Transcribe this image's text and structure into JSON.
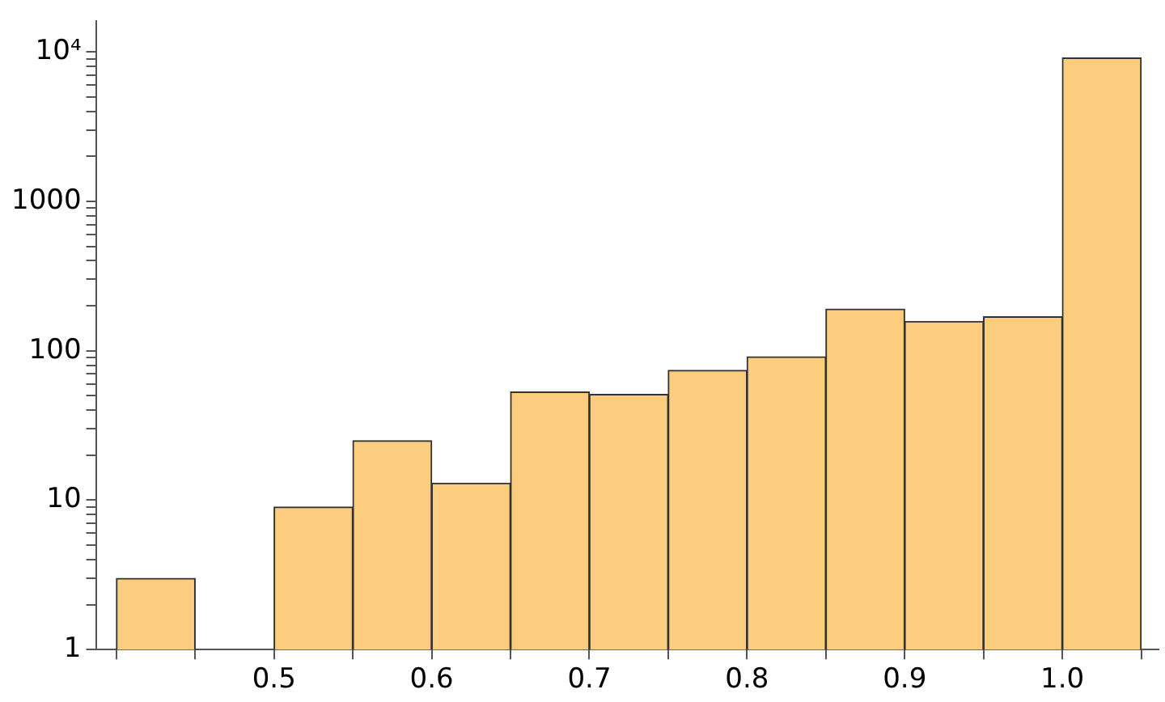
{
  "chart_data": {
    "type": "histogram",
    "bins": [
      0.4,
      0.45,
      0.5,
      0.55,
      0.6,
      0.65,
      0.7,
      0.75,
      0.8,
      0.85,
      0.9,
      0.95,
      1.0,
      1.05
    ],
    "values": [
      3,
      null,
      9,
      25,
      13,
      53,
      51,
      74,
      91,
      190,
      157,
      169,
      9100
    ],
    "color": "#fccd7f",
    "log": "y",
    "grid": false,
    "legend": false,
    "xlim": [
      0.387,
      1.061
    ],
    "xticks": [
      {
        "value": 0.4,
        "label": null
      },
      {
        "value": 0.45,
        "label": null
      },
      0.5,
      {
        "value": 0.55,
        "label": null
      },
      0.6,
      {
        "value": 0.65,
        "label": null
      },
      0.7,
      {
        "value": 0.75,
        "label": null
      },
      0.8,
      {
        "value": 0.85,
        "label": null
      },
      0.9,
      {
        "value": 0.95,
        "label": null
      },
      {
        "value": 1.0,
        "label": "1.0"
      },
      {
        "value": 1.05,
        "label": null
      }
    ],
    "ylim": [
      1,
      16000
    ],
    "yticks": [
      1,
      {
        "value": 2,
        "label": null
      },
      {
        "value": 3,
        "label": null
      },
      {
        "value": 4,
        "label": null
      },
      {
        "value": 5,
        "label": null
      },
      {
        "value": 6,
        "label": null
      },
      {
        "value": 7,
        "label": null
      },
      {
        "value": 8,
        "label": null
      },
      {
        "value": 9,
        "label": null
      },
      10,
      {
        "value": 20,
        "label": null
      },
      {
        "value": 30,
        "label": null
      },
      {
        "value": 40,
        "label": null
      },
      {
        "value": 50,
        "label": null
      },
      {
        "value": 60,
        "label": null
      },
      {
        "value": 70,
        "label": null
      },
      {
        "value": 80,
        "label": null
      },
      {
        "value": 90,
        "label": null
      },
      100,
      {
        "value": 200,
        "label": null
      },
      {
        "value": 300,
        "label": null
      },
      {
        "value": 400,
        "label": null
      },
      {
        "value": 500,
        "label": null
      },
      {
        "value": 600,
        "label": null
      },
      {
        "value": 700,
        "label": null
      },
      {
        "value": 800,
        "label": null
      },
      {
        "value": 900,
        "label": null
      },
      1000,
      {
        "value": 2000,
        "label": null
      },
      {
        "value": 3000,
        "label": null
      },
      {
        "value": 4000,
        "label": null
      },
      {
        "value": 5000,
        "label": null
      },
      {
        "value": 6000,
        "label": null
      },
      {
        "value": 7000,
        "label": null
      },
      {
        "value": 8000,
        "label": null
      },
      {
        "value": 9000,
        "label": null
      },
      {
        "value": 10000,
        "label": "10⁴"
      }
    ]
  }
}
